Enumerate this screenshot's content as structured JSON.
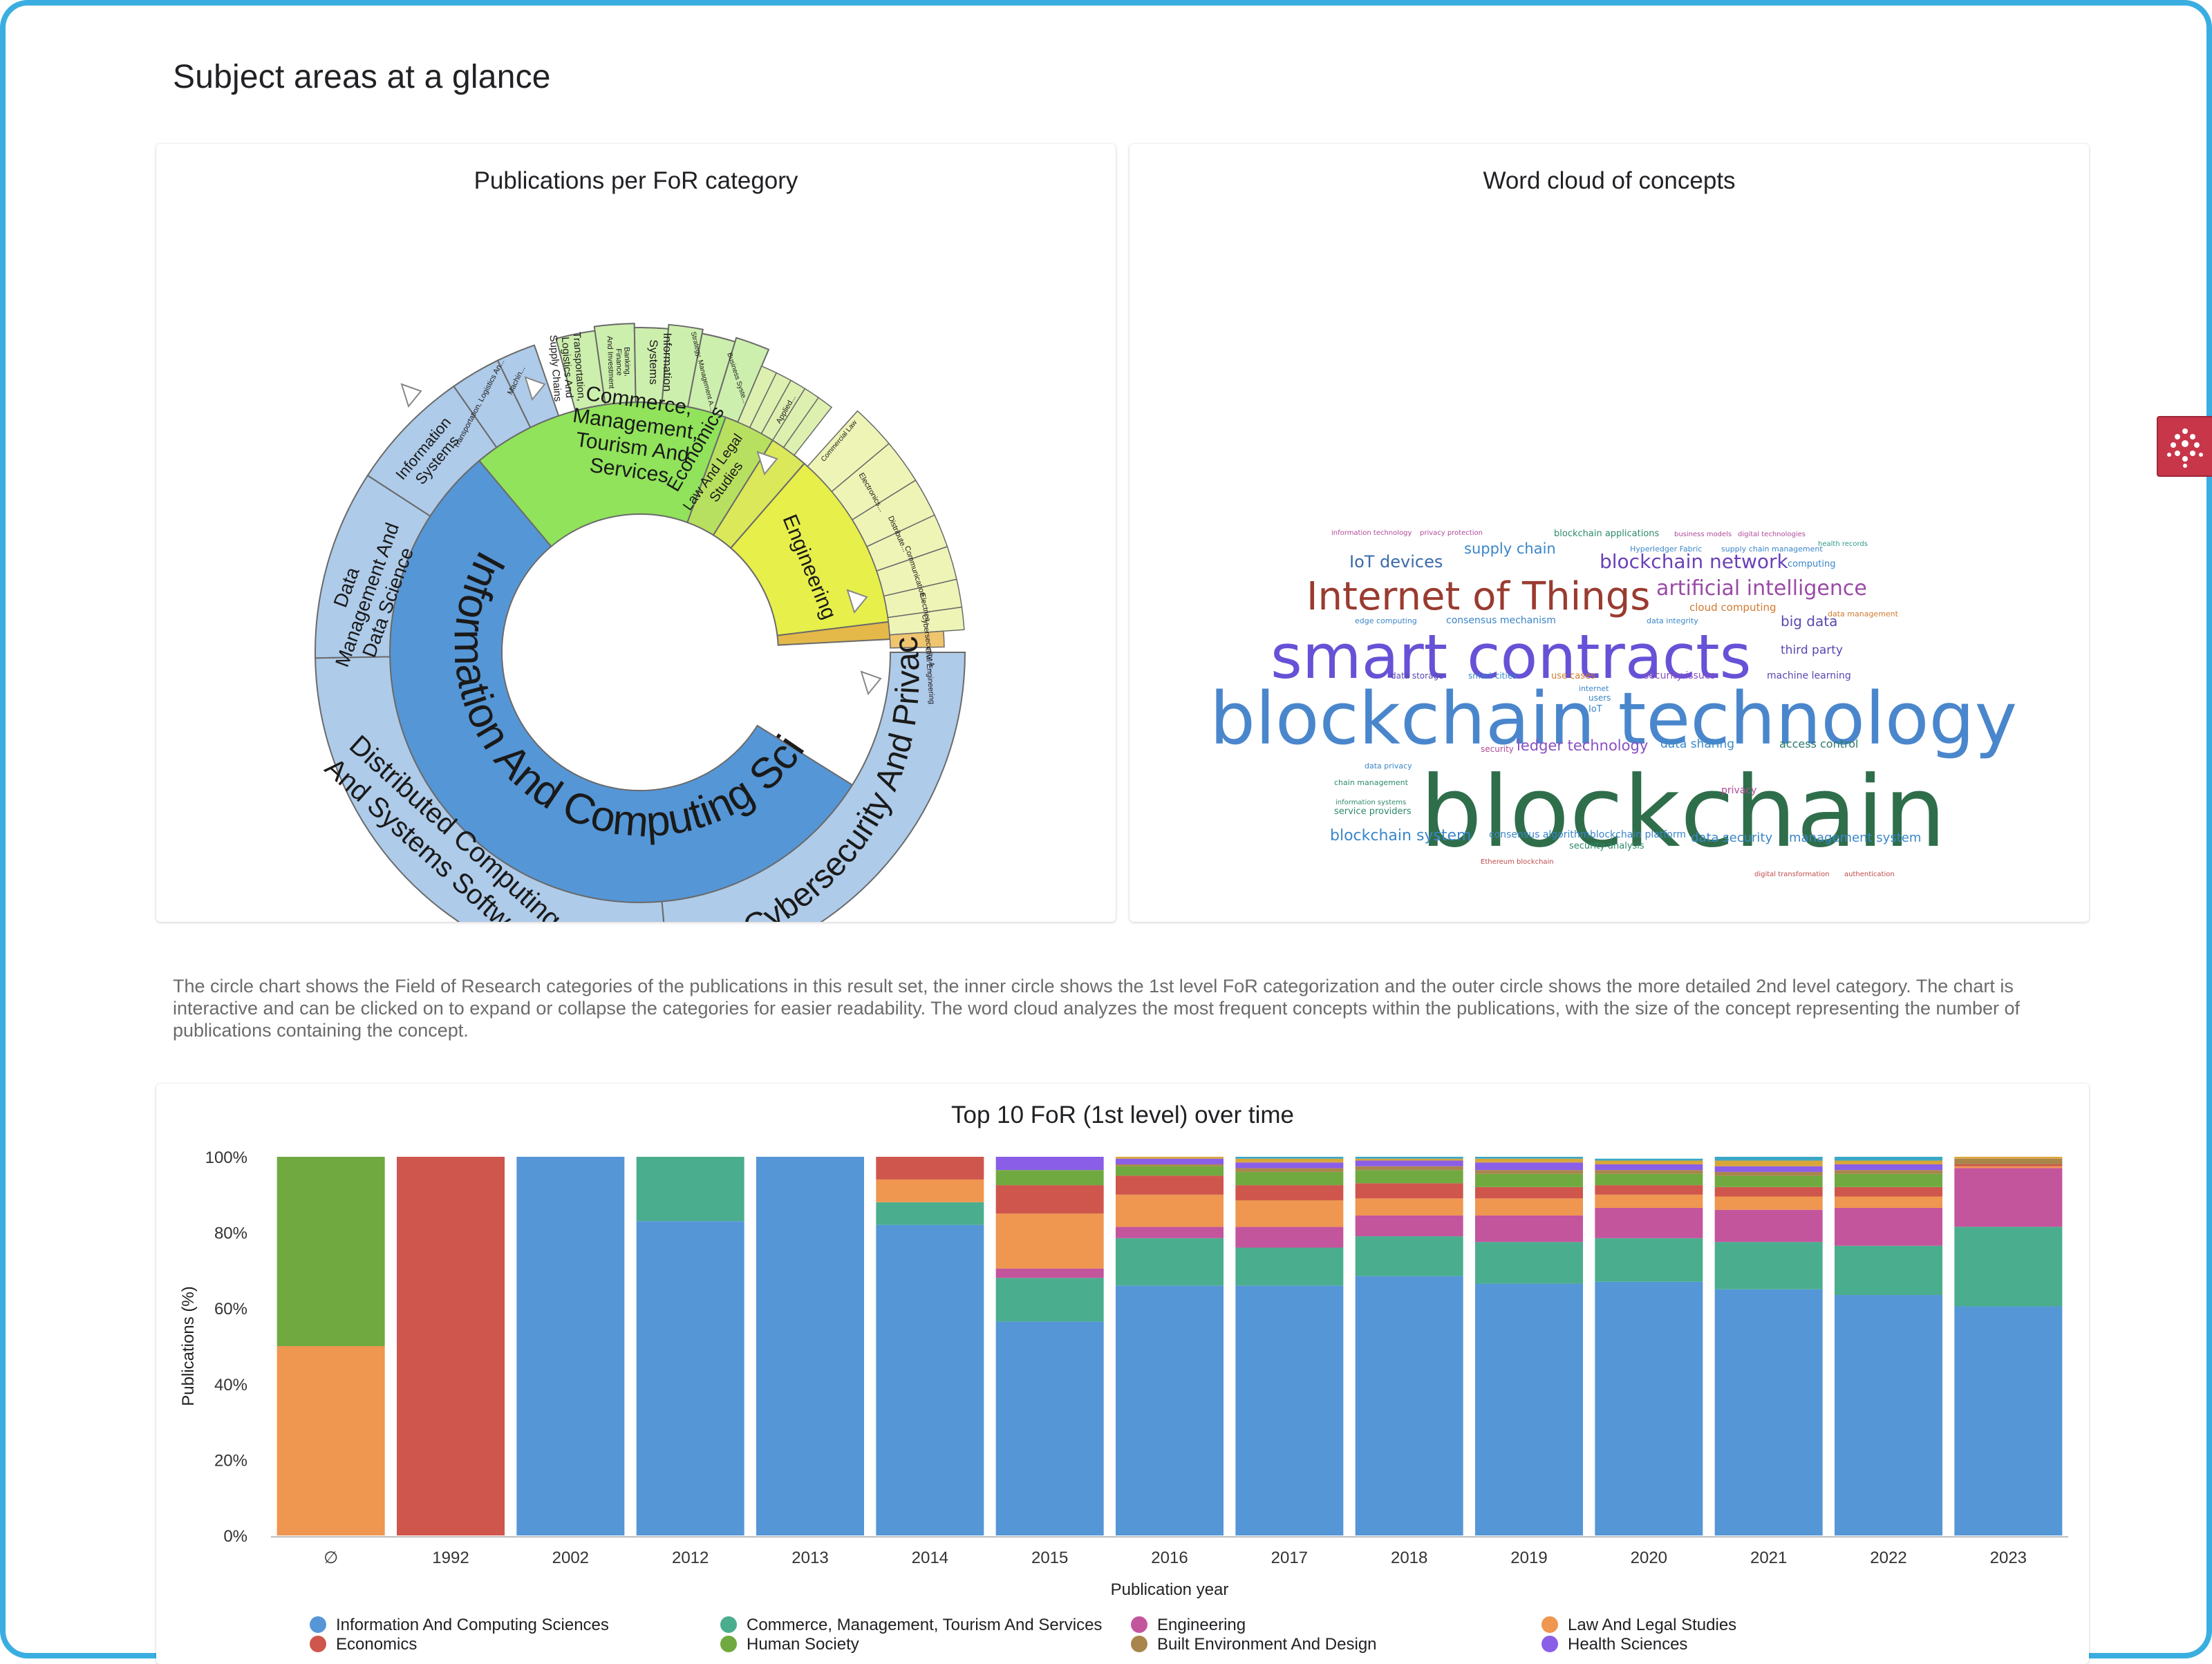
{
  "page": {
    "title": "Subject areas at a glance"
  },
  "cards": {
    "sunburst_title": "Publications per FoR category",
    "wordcloud_title": "Word cloud of concepts",
    "stacked_title": "Top 10 FoR (1st level) over time"
  },
  "description": "The circle chart shows the Field of Research categories of the publications in this result set, the inner circle shows the 1st level FoR categorization and the outer circle shows the more detailed 2nd level category. The chart is interactive and can be clicked on to expand or collapse the categories for easier readability. The word cloud analyzes the most frequent concepts within the publications, with the size of the concept representing the number of publications containing the concept.",
  "colors": {
    "Information And Computing Sciences": "#5596d6",
    "Commerce, Management, Tourism And Services": "#4aae8e",
    "Engineering": "#c3559d",
    "Law And Legal Studies": "#ef9650",
    "Economics": "#cf564c",
    "Human Society": "#71a941",
    "Built Environment And Design": "#a9854c",
    "Health Sciences": "#8a5ee6",
    "Other1": "#d9a63a",
    "Other2": "#3aa8c4"
  },
  "sunburst": {
    "inner": [
      {
        "label": "Information And Computing Sciences"
      },
      {
        "label": "Commerce, Management, Tourism And Services",
        "lines": [
          "Commerce,",
          "Management,",
          "Tourism And",
          "Services"
        ]
      },
      {
        "label": "Economics"
      },
      {
        "label": "Law And Legal Studies",
        "lines": [
          "Law And Legal",
          "Studies"
        ]
      },
      {
        "label": "Engineering"
      }
    ],
    "outer": [
      {
        "label": "Cybersecurity And Privacy"
      },
      {
        "label": "Distributed Computing And Systems Software",
        "lines": [
          "Distributed Computing",
          "And Systems Software"
        ]
      },
      {
        "label": "Data Management And Data Science",
        "lines": [
          "Data",
          "Management And",
          "Data Science"
        ]
      },
      {
        "label": "Information Systems",
        "lines": [
          "Information",
          "Systems"
        ]
      },
      {
        "label": "Transportation, Logistics An..."
      },
      {
        "label": "Machin..."
      },
      {
        "label": "Transportation, Logistics And Supply Chains",
        "lines": [
          "Transportation,",
          "Logistics And",
          "Supply Chains"
        ]
      },
      {
        "label": "Banking, Finance And Investment",
        "lines": [
          "Banking,",
          "Finance",
          "And Investment"
        ]
      },
      {
        "label": "Information Systems",
        "lines": [
          "Information",
          "Systems"
        ]
      },
      {
        "label": "Strategy, Management A..."
      },
      {
        "label": "Business Syste..."
      },
      {
        "label": "Applied..."
      },
      {
        "label": "Commercial Law"
      },
      {
        "label": "Electronics..."
      },
      {
        "label": "Distribute..."
      },
      {
        "label": "Communication..."
      },
      {
        "label": "Electrica..."
      },
      {
        "label": "Cybersecurity A..."
      },
      {
        "label": "Civil Engineering"
      }
    ]
  },
  "wordcloud": [
    {
      "text": "blockchain",
      "color": "#2f6e4a"
    },
    {
      "text": "blockchain technology",
      "color": "#4a86cc"
    },
    {
      "text": "smart contracts",
      "color": "#6652d6"
    },
    {
      "text": "Internet of Things",
      "color": "#9a3b30"
    },
    {
      "text": "artificial intelligence",
      "color": "#9a4aa6"
    },
    {
      "text": "blockchain network",
      "color": "#6a40b8"
    },
    {
      "text": "IoT devices",
      "color": "#3a6aa8"
    },
    {
      "text": "supply chain",
      "color": "#3a86c8"
    },
    {
      "text": "big data",
      "color": "#5a46b0"
    },
    {
      "text": "third party",
      "color": "#5a46b0"
    },
    {
      "text": "machine learning",
      "color": "#5a46b0"
    },
    {
      "text": "ledger technology",
      "color": "#8a50c0"
    },
    {
      "text": "data sharing",
      "color": "#3a8ac8"
    },
    {
      "text": "access control",
      "color": "#2e7a6a"
    },
    {
      "text": "blockchain system",
      "color": "#3a86c8"
    },
    {
      "text": "data security",
      "color": "#3a86c8"
    },
    {
      "text": "management system",
      "color": "#3a86c8"
    },
    {
      "text": "blockchain platform",
      "color": "#3a86c8"
    },
    {
      "text": "consensus algorithm",
      "color": "#3a86c8"
    },
    {
      "text": "security analysis",
      "color": "#2e8a6a"
    },
    {
      "text": "service providers",
      "color": "#2e8a6a"
    },
    {
      "text": "blockchain applications",
      "color": "#2e8a6a"
    },
    {
      "text": "Hyperledger Fabric",
      "color": "#3a86c8"
    },
    {
      "text": "supply chain management",
      "color": "#3a86c8"
    },
    {
      "text": "computing",
      "color": "#3a86c8"
    },
    {
      "text": "health records",
      "color": "#2e9a8a"
    },
    {
      "text": "business models",
      "color": "#b04a9a"
    },
    {
      "text": "digital technologies",
      "color": "#b04a9a"
    },
    {
      "text": "information technology",
      "color": "#b04a9a"
    },
    {
      "text": "privacy protection",
      "color": "#b04a9a"
    },
    {
      "text": "cloud computing",
      "color": "#d07a30"
    },
    {
      "text": "data management",
      "color": "#d07a30"
    },
    {
      "text": "data integrity",
      "color": "#3a86c8"
    },
    {
      "text": "consensus mechanism",
      "color": "#3a86c8"
    },
    {
      "text": "edge computing",
      "color": "#3a86c8"
    },
    {
      "text": "data storage",
      "color": "#5a46b0"
    },
    {
      "text": "smart cities",
      "color": "#3a86c8"
    },
    {
      "text": "use cases",
      "color": "#d07a30"
    },
    {
      "text": "security issues",
      "color": "#8a50c0"
    },
    {
      "text": "internet",
      "color": "#3a86c8"
    },
    {
      "text": "users",
      "color": "#3a86c8"
    },
    {
      "text": "IoT",
      "color": "#3a86c8"
    },
    {
      "text": "security",
      "color": "#b04a9a"
    },
    {
      "text": "privacy",
      "color": "#b04a9a"
    },
    {
      "text": "data privacy",
      "color": "#3a86c8"
    },
    {
      "text": "chain management",
      "color": "#2e8a6a"
    },
    {
      "text": "information systems",
      "color": "#2e8a6a"
    },
    {
      "text": "Ethereum blockchain",
      "color": "#c04a4a"
    },
    {
      "text": "digital transformation",
      "color": "#c04a4a"
    },
    {
      "text": "authentication",
      "color": "#c04a4a"
    }
  ],
  "chart_data": {
    "type": "bar",
    "stacked": true,
    "percent": true,
    "title": "Top 10 FoR (1st level) over time",
    "xlabel": "Publication year",
    "ylabel": "Publications (%)",
    "ylim": [
      0,
      100
    ],
    "yticks": [
      "0%",
      "20%",
      "40%",
      "60%",
      "80%",
      "100%"
    ],
    "categories": [
      "∅",
      "1992",
      "2002",
      "2012",
      "2013",
      "2014",
      "2015",
      "2016",
      "2017",
      "2018",
      "2019",
      "2020",
      "2021",
      "2022",
      "2023"
    ],
    "series": [
      {
        "name": "Information And Computing Sciences",
        "color": "#5596d6",
        "values": [
          0,
          0,
          100,
          83,
          100,
          82,
          56.5,
          66,
          66,
          68.5,
          66.5,
          67,
          65,
          63.5,
          60.5
        ]
      },
      {
        "name": "Commerce, Management, Tourism And Services",
        "color": "#4aae8e",
        "values": [
          0,
          0,
          0,
          17,
          0,
          6,
          11.5,
          12.5,
          10,
          10.5,
          11,
          11.5,
          12.5,
          13,
          21
        ]
      },
      {
        "name": "Engineering",
        "color": "#c3559d",
        "values": [
          0,
          0,
          0,
          0,
          0,
          0,
          2.5,
          3,
          5.5,
          5.5,
          7,
          8,
          8.5,
          10,
          15.5
        ]
      },
      {
        "name": "Law And Legal Studies",
        "color": "#ef9650",
        "values": [
          50,
          0,
          0,
          0,
          0,
          6,
          14.5,
          8.5,
          7,
          4.5,
          4.5,
          3.5,
          3.5,
          3,
          0.5
        ]
      },
      {
        "name": "Economics",
        "color": "#cf564c",
        "values": [
          0,
          100,
          0,
          0,
          0,
          6,
          7.5,
          5,
          4,
          4,
          3,
          2.5,
          2.5,
          2.5,
          0.5
        ]
      },
      {
        "name": "Human Society",
        "color": "#71a941",
        "values": [
          50,
          0,
          0,
          0,
          0,
          0,
          4,
          2.5,
          3.5,
          3.5,
          3.5,
          3,
          3,
          3.5,
          0
        ]
      },
      {
        "name": "Built Environment And Design",
        "color": "#a9854c",
        "values": [
          0,
          0,
          0,
          0,
          0,
          0,
          0,
          0.5,
          1,
          1,
          1,
          1,
          1,
          1,
          1.5
        ]
      },
      {
        "name": "Health Sciences",
        "color": "#8a5ee6",
        "values": [
          0,
          0,
          0,
          0,
          0,
          0,
          3.5,
          1.5,
          1.5,
          1.5,
          2,
          1.5,
          1.5,
          1.5,
          0
        ]
      },
      {
        "name": "",
        "color": "#d9a63a",
        "values": [
          0,
          0,
          0,
          0,
          0,
          0,
          0,
          0.5,
          1,
          0.5,
          1,
          1,
          1.5,
          1,
          0.5
        ]
      },
      {
        "name": "",
        "color": "#3aa8c4",
        "values": [
          0,
          0,
          0,
          0,
          0,
          0,
          0,
          0,
          0.5,
          0.5,
          0.5,
          0.5,
          1,
          1,
          0
        ]
      }
    ],
    "legend_position": "bottom",
    "grid": false
  }
}
